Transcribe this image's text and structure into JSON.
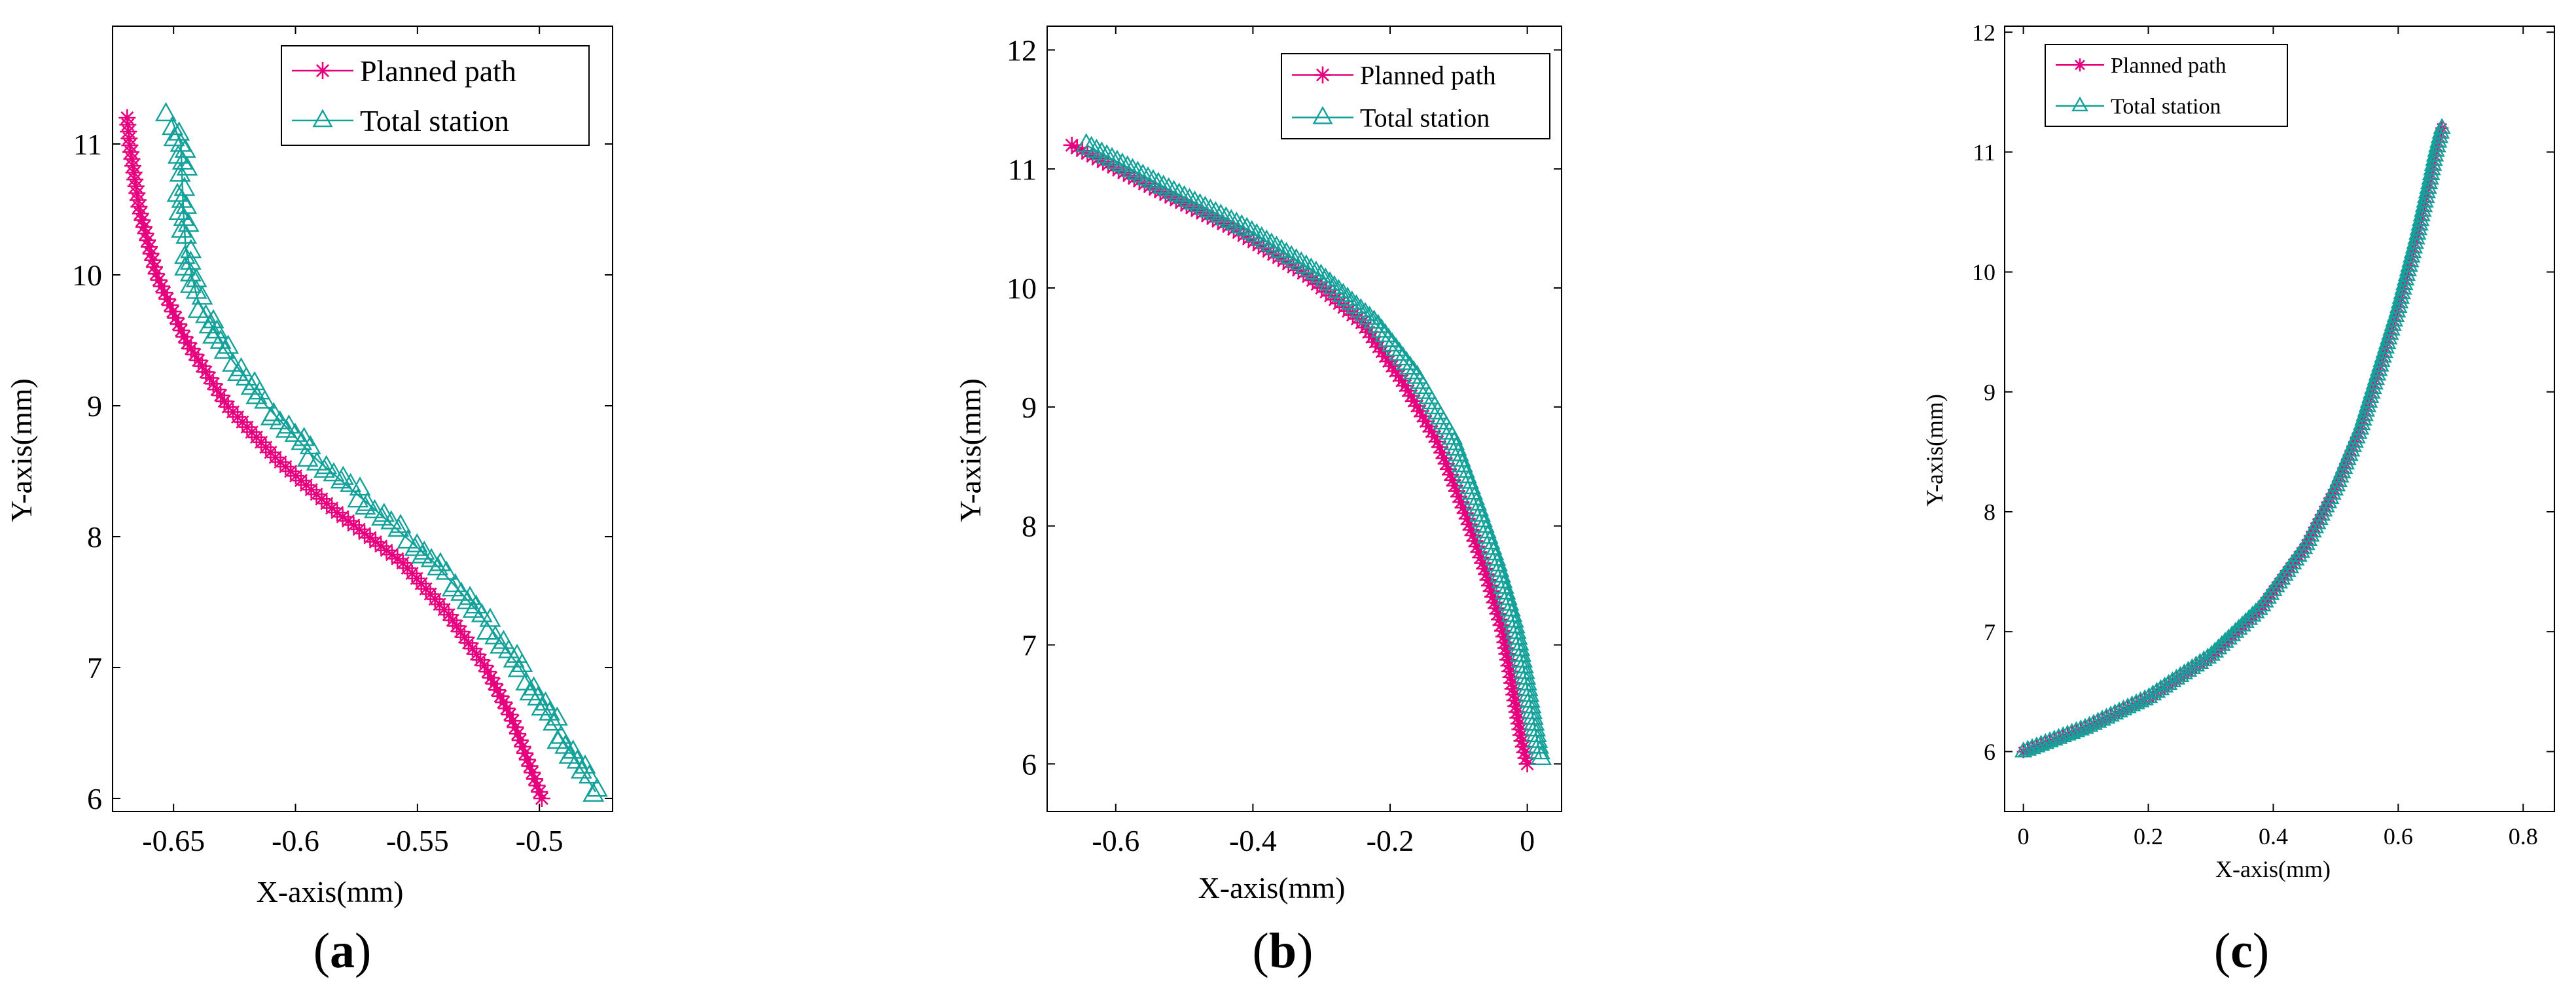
{
  "colors": {
    "planned": "#e6007e",
    "total_station": "#13a19a",
    "axis": "#000000",
    "background": "#ffffff"
  },
  "icons": {
    "planned_marker": "asterisk",
    "total_station_marker": "triangle-up"
  },
  "chart_data": [
    {
      "type": "line",
      "id": "a",
      "panel_label": "a",
      "xlabel": "X-axis(mm)",
      "ylabel": "Y-axis(mm)",
      "xlim": [
        -0.675,
        -0.47
      ],
      "ylim": [
        5.9,
        11.9
      ],
      "xticks": [
        -0.65,
        -0.6,
        -0.55,
        -0.5
      ],
      "xtick_labels": [
        "-0.65",
        "-0.6",
        "-0.55",
        "-0.5"
      ],
      "yticks": [
        6,
        7,
        8,
        9,
        10,
        11
      ],
      "ytick_labels": [
        "6",
        "7",
        "8",
        "9",
        "10",
        "11"
      ],
      "legend": {
        "position": "top-right",
        "entries": [
          "Planned path",
          "Total station"
        ]
      },
      "series": [
        {
          "name": "Planned path",
          "marker": "asterisk",
          "color": "#e6007e",
          "x": [
            -0.669,
            -0.668,
            -0.664,
            -0.657,
            -0.645,
            -0.628,
            -0.608,
            -0.584,
            -0.556,
            -0.537,
            -0.522,
            -0.511,
            -0.503,
            -0.499
          ],
          "y": [
            11.2,
            11.0,
            10.5,
            10.0,
            9.5,
            9.0,
            8.6,
            8.2,
            7.8,
            7.4,
            7.0,
            6.6,
            6.2,
            6.0
          ]
        },
        {
          "name": "Total station",
          "marker": "triangle",
          "color": "#13a19a",
          "x": [
            -0.651,
            -0.647,
            -0.646,
            -0.645,
            -0.64,
            -0.628,
            -0.612,
            -0.592,
            -0.567,
            -0.543,
            -0.524,
            -0.508,
            -0.492,
            -0.477
          ],
          "y": [
            11.2,
            11.0,
            10.5,
            10.2,
            9.8,
            9.4,
            9.0,
            8.6,
            8.2,
            7.8,
            7.4,
            7.0,
            6.5,
            6.05
          ]
        }
      ]
    },
    {
      "type": "line",
      "id": "b",
      "panel_label": "b",
      "xlabel": "X-axis(mm)",
      "ylabel": "Y-axis(mm)",
      "xlim": [
        -0.7,
        0.05
      ],
      "ylim": [
        5.6,
        12.2
      ],
      "xticks": [
        -0.6,
        -0.4,
        -0.2,
        0
      ],
      "xtick_labels": [
        "-0.6",
        "-0.4",
        "-0.2",
        "0"
      ],
      "yticks": [
        6,
        7,
        8,
        9,
        10,
        11,
        12
      ],
      "ytick_labels": [
        "6",
        "7",
        "8",
        "9",
        "10",
        "11",
        "12"
      ],
      "legend": {
        "position": "top-right",
        "entries": [
          "Planned path",
          "Total station"
        ]
      },
      "series": [
        {
          "name": "Planned path",
          "marker": "asterisk",
          "color": "#e6007e",
          "x": [
            -0.664,
            -0.55,
            -0.43,
            -0.32,
            -0.24,
            -0.18,
            -0.13,
            -0.09,
            -0.06,
            -0.035,
            -0.02,
            -0.008,
            0.0
          ],
          "y": [
            11.2,
            10.85,
            10.5,
            10.1,
            9.7,
            9.2,
            8.7,
            8.1,
            7.6,
            7.1,
            6.6,
            6.2,
            6.0
          ]
        },
        {
          "name": "Total station",
          "marker": "triangle",
          "color": "#13a19a",
          "x": [
            -0.643,
            -0.53,
            -0.41,
            -0.3,
            -0.22,
            -0.16,
            -0.11,
            -0.075,
            -0.045,
            -0.02,
            -0.005,
            0.008,
            0.016,
            0.02
          ],
          "y": [
            11.2,
            10.85,
            10.5,
            10.1,
            9.7,
            9.25,
            8.75,
            8.2,
            7.7,
            7.2,
            6.8,
            6.4,
            6.15,
            6.05
          ]
        }
      ]
    },
    {
      "type": "line",
      "id": "c",
      "panel_label": "c",
      "xlabel": "X-axis(mm)",
      "ylabel": "Y-axis(mm)",
      "xlim": [
        -0.03,
        0.85
      ],
      "ylim": [
        5.5,
        12.05
      ],
      "xticks": [
        0,
        0.2,
        0.4,
        0.6,
        0.8
      ],
      "xtick_labels": [
        "0",
        "0.2",
        "0.4",
        "0.6",
        "0.8"
      ],
      "yticks": [
        6,
        7,
        8,
        9,
        10,
        11,
        12
      ],
      "ytick_labels": [
        "6",
        "7",
        "8",
        "9",
        "10",
        "11",
        "12"
      ],
      "legend": {
        "position": "top-left",
        "entries": [
          "Planned path",
          "Total station"
        ]
      },
      "series": [
        {
          "name": "Planned path",
          "marker": "asterisk",
          "color": "#e6007e",
          "x": [
            0.0,
            0.1,
            0.2,
            0.3,
            0.38,
            0.45,
            0.5,
            0.54,
            0.57,
            0.6,
            0.63,
            0.65,
            0.66,
            0.67
          ],
          "y": [
            6.0,
            6.2,
            6.45,
            6.8,
            7.2,
            7.7,
            8.2,
            8.7,
            9.2,
            9.7,
            10.3,
            10.75,
            11.0,
            11.2
          ]
        },
        {
          "name": "Total station",
          "marker": "triangle",
          "color": "#13a19a",
          "x": [
            0.0,
            0.1,
            0.2,
            0.3,
            0.38,
            0.45,
            0.5,
            0.54,
            0.57,
            0.6,
            0.63,
            0.65,
            0.66,
            0.67
          ],
          "y": [
            6.0,
            6.2,
            6.45,
            6.8,
            7.2,
            7.7,
            8.2,
            8.7,
            9.2,
            9.7,
            10.3,
            10.75,
            11.0,
            11.2
          ]
        }
      ]
    }
  ]
}
